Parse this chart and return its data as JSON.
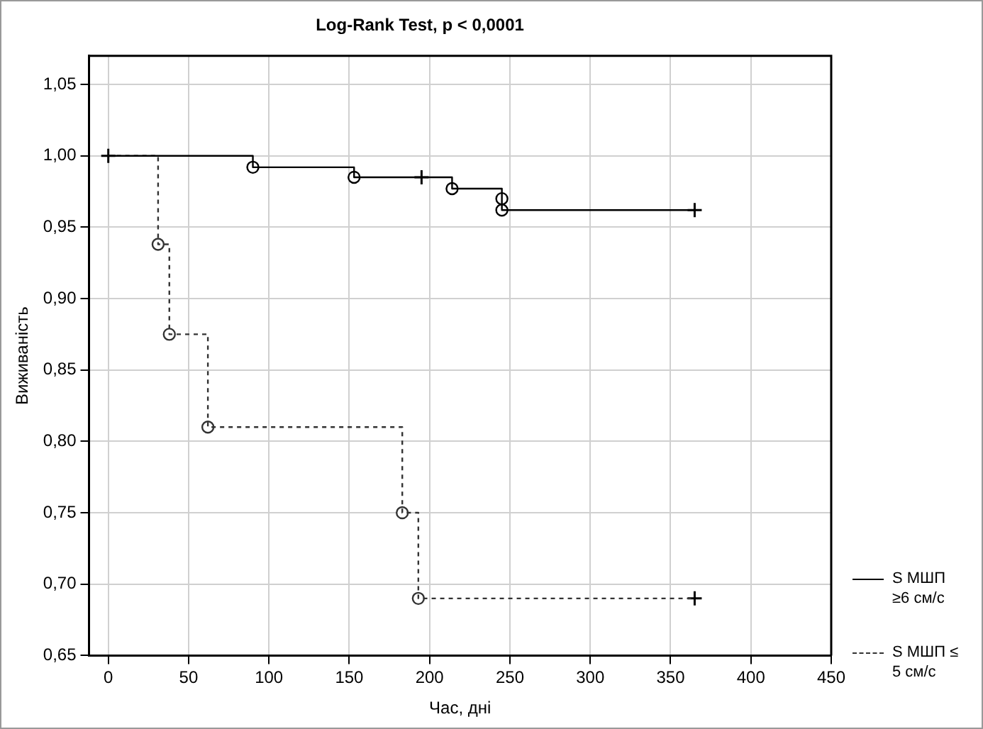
{
  "chart_data": {
    "type": "step",
    "title": "Log-Rank Test, p < 0,0001",
    "xlabel": "Час, дні",
    "ylabel": "Виживаність",
    "xlim": [
      -12,
      450
    ],
    "xticks": [
      0,
      50,
      100,
      150,
      200,
      250,
      300,
      350,
      400,
      450
    ],
    "ylim": [
      0.65,
      1.07
    ],
    "yticks": [
      {
        "value": 0.65,
        "label": "0,65"
      },
      {
        "value": 0.7,
        "label": "0,70"
      },
      {
        "value": 0.75,
        "label": "0,75"
      },
      {
        "value": 0.8,
        "label": "0,80"
      },
      {
        "value": 0.85,
        "label": "0,85"
      },
      {
        "value": 0.9,
        "label": "0,90"
      },
      {
        "value": 0.95,
        "label": "0,95"
      },
      {
        "value": 1.0,
        "label": "1,00"
      },
      {
        "value": 1.05,
        "label": "1,05"
      }
    ],
    "grid": true,
    "legend": "bottom right",
    "series": [
      {
        "name": "S МШП ≥6 см/с",
        "color": "#000000",
        "line_style": "solid",
        "marker": "none",
        "x": [
          0,
          90,
          153,
          214,
          245,
          245,
          365
        ],
        "values": [
          1,
          0.992,
          0.985,
          0.977,
          0.97,
          0.962,
          0.962
        ]
      },
      {
        "name": "S МШП ≤ 5 см/с",
        "color": "#333333",
        "line_style": "dashed",
        "marker": "none",
        "x": [
          0,
          31,
          38,
          62,
          183,
          193,
          365
        ],
        "values": [
          1,
          0.938,
          0.875,
          0.81,
          0.75,
          0.69,
          0.69
        ]
      },
      {
        "type": "scatter",
        "color": "#000000",
        "marker": "circle",
        "x": [
          90,
          153,
          214,
          245,
          245
        ],
        "values": [
          0.992,
          0.985,
          0.977,
          0.97,
          0.962
        ]
      },
      {
        "type": "scatter",
        "color": "#333333",
        "marker": "circle",
        "x": [
          31,
          38,
          62,
          183,
          193
        ],
        "values": [
          0.938,
          0.875,
          0.81,
          0.75,
          0.69
        ]
      },
      {
        "type": "scatter",
        "color": "#000000",
        "marker": "cross",
        "x": [
          0,
          195,
          365
        ],
        "values": [
          1,
          0.985,
          0.962
        ]
      },
      {
        "type": "scatter",
        "color": "#000000",
        "marker": "cross",
        "x": [
          365
        ],
        "values": [
          0.69
        ]
      }
    ]
  }
}
